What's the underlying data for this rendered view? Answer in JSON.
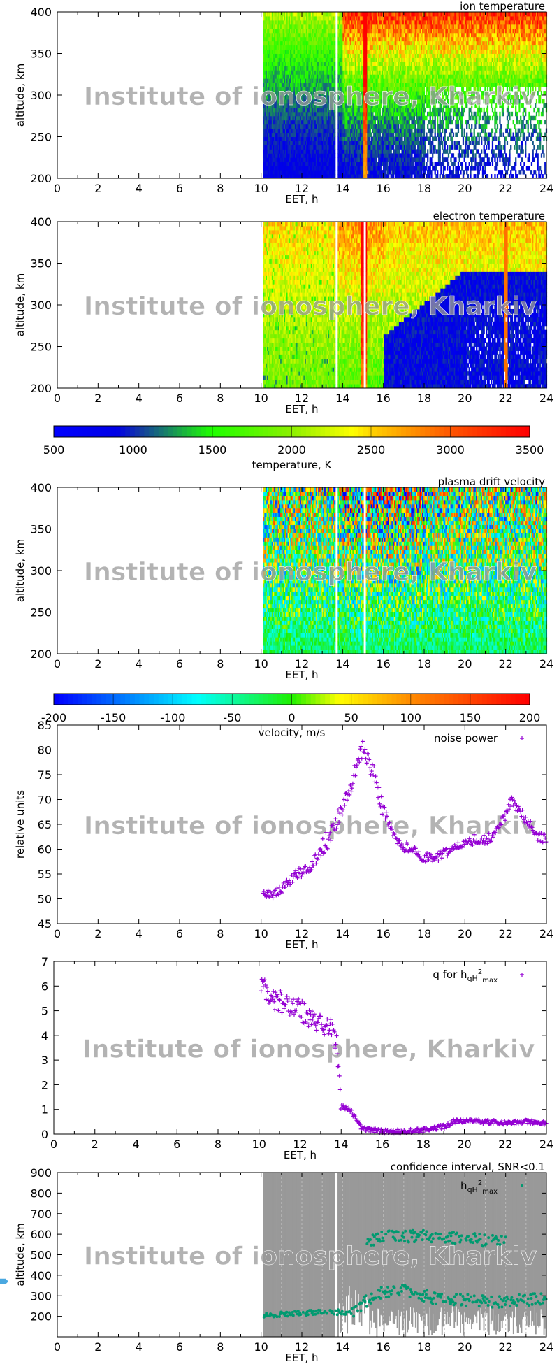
{
  "watermark": "Institute of ionosphere, Kharkiv",
  "chart_data": [
    {
      "id": "ion",
      "type": "heatmap",
      "title": "ion temperature",
      "xlabel": "EET, h",
      "ylabel": "altitude, km",
      "xlim": [
        0,
        24
      ],
      "ylim": [
        200,
        400
      ],
      "xticks": [
        "0",
        "2",
        "4",
        "6",
        "8",
        "10",
        "12",
        "14",
        "16",
        "18",
        "20",
        "22",
        "24"
      ],
      "yticks": [
        "200",
        "250",
        "300",
        "350",
        "400"
      ],
      "data_start_h": 10.1,
      "colorbar": "temperature"
    },
    {
      "id": "ele",
      "type": "heatmap",
      "title": "electron temperature",
      "xlabel": "EET, h",
      "ylabel": "altitude, km",
      "xlim": [
        0,
        24
      ],
      "ylim": [
        200,
        400
      ],
      "xticks": [
        "0",
        "2",
        "4",
        "6",
        "8",
        "10",
        "12",
        "14",
        "16",
        "18",
        "20",
        "22",
        "24"
      ],
      "yticks": [
        "200",
        "250",
        "300",
        "350",
        "400"
      ],
      "data_start_h": 10.1,
      "colorbar": "temperature"
    },
    {
      "id": "tempbar",
      "type": "colorbar",
      "label": "temperature, K",
      "range": [
        500,
        3500
      ],
      "ticks": [
        "500",
        "1000",
        "1500",
        "2000",
        "2500",
        "3000",
        "3500"
      ]
    },
    {
      "id": "vel",
      "type": "heatmap",
      "title": "plasma drift velocity",
      "xlabel": "EET, h",
      "ylabel": "altitude, km",
      "xlim": [
        0,
        24
      ],
      "ylim": [
        200,
        400
      ],
      "xticks": [
        "0",
        "2",
        "4",
        "6",
        "8",
        "10",
        "12",
        "14",
        "16",
        "18",
        "20",
        "22",
        "24"
      ],
      "yticks": [
        "200",
        "250",
        "300",
        "350",
        "400"
      ],
      "data_start_h": 10.1,
      "colorbar": "velocity"
    },
    {
      "id": "velbar",
      "type": "colorbar",
      "label": "velocity, m/s",
      "range": [
        -200,
        200
      ],
      "ticks": [
        "-200",
        "-150",
        "-100",
        "-50",
        "0",
        "50",
        "100",
        "150",
        "200"
      ]
    },
    {
      "id": "noise",
      "type": "scatter",
      "legend": "noise power",
      "legend_position": "top-right",
      "xlabel": "EET, h",
      "ylabel": "relative units",
      "xlim": [
        0,
        24
      ],
      "ylim": [
        45,
        85
      ],
      "xticks": [
        "0",
        "2",
        "4",
        "6",
        "8",
        "10",
        "12",
        "14",
        "16",
        "18",
        "20",
        "22",
        "24"
      ],
      "yticks": [
        "45",
        "50",
        "55",
        "60",
        "65",
        "70",
        "75",
        "80",
        "85"
      ],
      "color": "#9400d3",
      "x": [
        10.1,
        10.5,
        11,
        11.5,
        12,
        12.5,
        13,
        13.5,
        14,
        14.5,
        15,
        15.3,
        15.6,
        16,
        16.5,
        17,
        17.5,
        18,
        18.5,
        19,
        19.5,
        20,
        20.5,
        21,
        21.5,
        22,
        22.3,
        22.6,
        23,
        23.5,
        24
      ],
      "y": [
        51,
        50.5,
        52,
        54,
        55.5,
        57,
        60,
        64,
        68,
        74,
        81,
        78,
        74,
        68,
        63,
        60.5,
        60,
        58,
        58.5,
        59,
        60.5,
        61.5,
        62,
        62,
        63,
        67,
        70,
        68,
        66,
        63,
        62
      ]
    },
    {
      "id": "q",
      "type": "scatter",
      "legend": "q for h",
      "legend_sub": "qH",
      "legend_sup": "2",
      "legend_sub2": "max",
      "legend_position": "top-right",
      "xlabel": "EET, h",
      "xlim": [
        0,
        24
      ],
      "ylim": [
        0,
        7
      ],
      "xticks": [
        "0",
        "2",
        "4",
        "6",
        "8",
        "10",
        "12",
        "14",
        "16",
        "18",
        "20",
        "22",
        "24"
      ],
      "yticks": [
        "0",
        "1",
        "2",
        "3",
        "4",
        "5",
        "6",
        "7"
      ],
      "color": "#9400d3",
      "x": [
        10.1,
        10.5,
        11,
        11.5,
        12,
        12.5,
        13,
        13.5,
        13.8,
        14,
        14.5,
        15,
        16,
        17,
        18,
        19,
        19.5,
        20,
        21,
        22,
        23,
        24
      ],
      "y": [
        6.0,
        5.6,
        5.4,
        5.2,
        5.0,
        4.7,
        4.5,
        4.2,
        3.5,
        1.2,
        0.9,
        0.2,
        0.1,
        0.1,
        0.15,
        0.3,
        0.5,
        0.55,
        0.5,
        0.45,
        0.5,
        0.45
      ]
    },
    {
      "id": "hmax",
      "type": "scatter",
      "title": "confidence interval, SNR<0.1",
      "legend": "h",
      "legend_sub": "qH",
      "legend_sup": "2",
      "legend_sub2": "max",
      "legend_position": "top-right",
      "xlabel": "EET, h",
      "ylabel": "altitude, km",
      "xlim": [
        0,
        24
      ],
      "ylim": [
        100,
        900
      ],
      "xticks": [
        "0",
        "2",
        "4",
        "6",
        "8",
        "10",
        "12",
        "14",
        "16",
        "18",
        "20",
        "22",
        "24"
      ],
      "yticks": [
        "200",
        "300",
        "400",
        "500",
        "600",
        "700",
        "800",
        "900"
      ],
      "color": "#009a70",
      "band_color": "#999999",
      "band_x": [
        10.1,
        24
      ],
      "series": [
        {
          "x": [
            10.1,
            11,
            12,
            13,
            14,
            14.5,
            15.5,
            16.5,
            17.5,
            18.5,
            19.5,
            20.5,
            21.5,
            22.5,
            23.5,
            24
          ],
          "y": [
            205,
            210,
            215,
            220,
            220,
            225,
            300,
            330,
            320,
            285,
            285,
            275,
            270,
            280,
            285,
            290
          ]
        },
        {
          "x": [
            15.2,
            16,
            17,
            18,
            19,
            20,
            21,
            22
          ],
          "y": [
            560,
            585,
            590,
            590,
            585,
            580,
            570,
            560
          ]
        }
      ]
    }
  ]
}
